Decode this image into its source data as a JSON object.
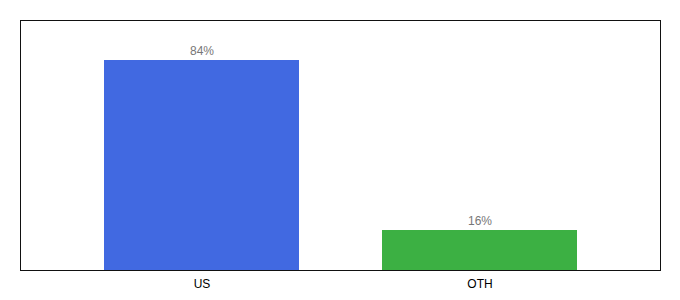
{
  "chart_data": {
    "type": "bar",
    "categories": [
      "US",
      "OTH"
    ],
    "values": [
      84,
      16
    ],
    "value_labels": [
      "84%",
      "16%"
    ],
    "colors": [
      "#4169e1",
      "#3cb043"
    ],
    "ylim": [
      0,
      100
    ],
    "data_labels": true,
    "tick_labels": "x"
  }
}
